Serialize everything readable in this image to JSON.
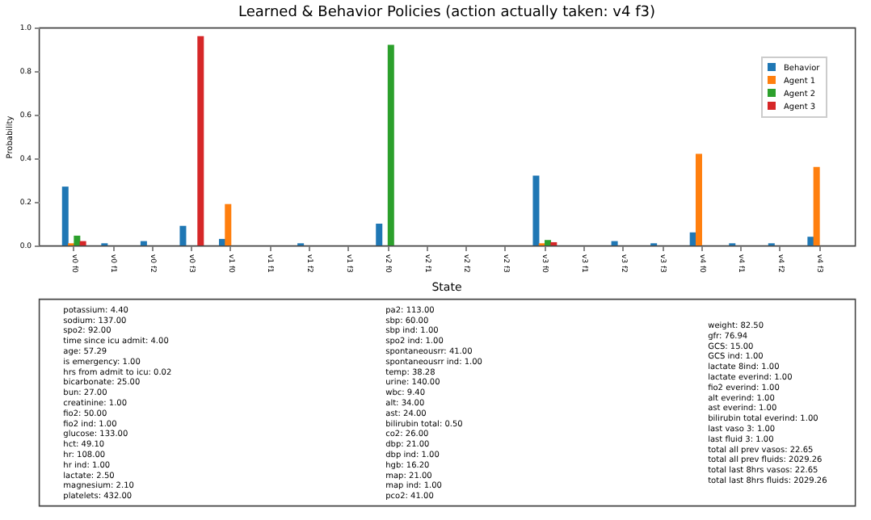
{
  "chart_data": [
    {
      "type": "bar",
      "title": "Learned & Behavior Policies (action actually taken: v4 f3)",
      "ylabel": "Probability",
      "categories": [
        "v0 f0",
        "v0 f1",
        "v0 f2",
        "v0 f3",
        "v1 f0",
        "v1 f1",
        "v1 f2",
        "v1 f3",
        "v2 f0",
        "v2 f1",
        "v2 f2",
        "v2 f3",
        "v3 f0",
        "v3 f1",
        "v3 f2",
        "v3 f3",
        "v4 f0",
        "v4 f1",
        "v4 f2",
        "v4 f3"
      ],
      "series": [
        {
          "name": "Behavior",
          "color": "#1f77b4",
          "values": [
            0.27,
            0.01,
            0.02,
            0.09,
            0.03,
            0,
            0.01,
            0,
            0.1,
            0,
            0,
            0,
            0.32,
            0,
            0.02,
            0.01,
            0.06,
            0.01,
            0.01,
            0.04
          ]
        },
        {
          "name": "Agent 1",
          "color": "#ff7f0e",
          "values": [
            0.01,
            0,
            0,
            0,
            0.19,
            0,
            0,
            0,
            0,
            0,
            0,
            0,
            0.01,
            0,
            0,
            0,
            0.42,
            0,
            0,
            0.36
          ]
        },
        {
          "name": "Agent 2",
          "color": "#2ca02c",
          "values": [
            0.045,
            0,
            0,
            0,
            0,
            0,
            0,
            0,
            0.92,
            0,
            0,
            0,
            0.025,
            0,
            0,
            0,
            0,
            0,
            0,
            0
          ]
        },
        {
          "name": "Agent 3",
          "color": "#d62728",
          "values": [
            0.02,
            0,
            0,
            0.96,
            0,
            0,
            0,
            0,
            0,
            0,
            0,
            0,
            0.015,
            0,
            0,
            0,
            0,
            0,
            0,
            0
          ]
        }
      ],
      "ylim": [
        0,
        1
      ],
      "yticks": [
        {
          "value": 0,
          "label": "0.0"
        },
        {
          "value": 0.2,
          "label": "0.2"
        },
        {
          "value": 0.4,
          "label": "0.4"
        },
        {
          "value": 0.6,
          "label": "0.6"
        },
        {
          "value": 0.8,
          "label": "0.8"
        },
        {
          "value": 1,
          "label": "1.0"
        }
      ],
      "grid": false,
      "legend": "top right"
    },
    {
      "type": "other",
      "title": "State",
      "annotations": [
        "potassium: 4.40\nsodium: 137.00\nspo2: 92.00\ntime since icu admit: 4.00\nage: 57.29\nis emergency: 1.00\nhrs from admit to icu: 0.02\nbicarbonate: 25.00\nbun: 27.00\ncreatinine: 1.00\nfio2: 50.00\nfio2 ind: 1.00\nglucose: 133.00\nhct: 49.10\nhr: 108.00\nhr ind: 1.00\nlactate: 2.50\nmagnesium: 2.10\nplatelets: 432.00",
        "pa2: 113.00\nsbp: 60.00\nsbp ind: 1.00\nspo2 ind: 1.00\nspontaneousrr: 41.00\nspontaneousrr ind: 1.00\ntemp: 38.28\nurine: 140.00\nwbc: 9.40\nalt: 34.00\nast: 24.00\nbilirubin total: 0.50\nco2: 26.00\ndbp: 21.00\ndbp ind: 1.00\nhgb: 16.20\nmap: 21.00\nmap ind: 1.00\npco2: 41.00",
        "weight: 82.50\ngfr: 76.94\nGCS: 15.00\nGCS ind: 1.00\nlactate 8ind: 1.00\nlactate everind: 1.00\nfio2 everind: 1.00\nalt everind: 1.00\nast everind: 1.00\nbilirubin total everind: 1.00\nlast vaso 3: 1.00\nlast fluid 3: 1.00\ntotal all prev vasos: 22.65\ntotal all prev fluids: 2029.26\ntotal last 8hrs vasos: 22.65\ntotal last 8hrs fluids: 2029.26"
      ]
    }
  ]
}
